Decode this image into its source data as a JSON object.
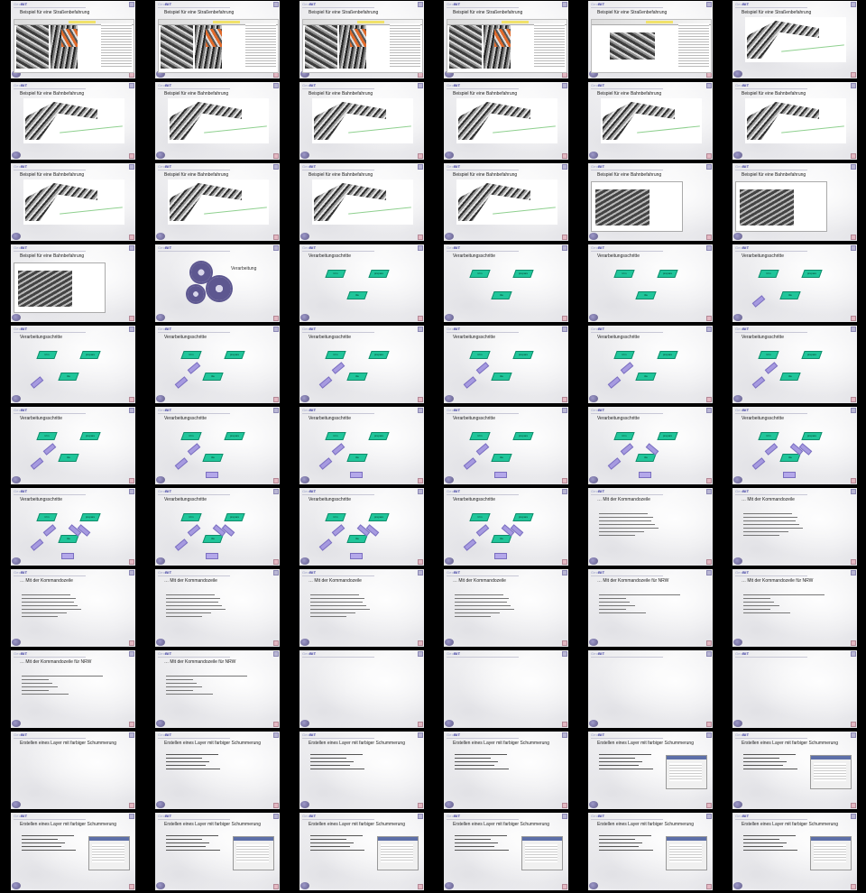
{
  "sheet": {
    "logo_text_light": "Geo",
    "logo_text_bold": "BIT"
  },
  "slides": [
    {
      "title": "Beispiel für eine Straßenbefahrung",
      "kind": "street"
    },
    {
      "title": "Beispiel für eine Straßenbefahrung",
      "kind": "street"
    },
    {
      "title": "Beispiel für eine Straßenbefahrung",
      "kind": "street"
    },
    {
      "title": "Beispiel für eine Straßenbefahrung",
      "kind": "street"
    },
    {
      "title": "Beispiel für eine Straßenbefahrung",
      "kind": "street-viewer"
    },
    {
      "title": "Beispiel für eine Straßenbefahrung",
      "kind": "cloud"
    },
    {
      "title": "Beispiel für eine Bahnbefahrung",
      "kind": "cloud"
    },
    {
      "title": "Beispiel für eine Bahnbefahrung",
      "kind": "cloud"
    },
    {
      "title": "Beispiel für eine Bahnbefahrung",
      "kind": "cloud"
    },
    {
      "title": "Beispiel für eine Bahnbefahrung",
      "kind": "cloud"
    },
    {
      "title": "Beispiel für eine Bahnbefahrung",
      "kind": "cloud"
    },
    {
      "title": "Beispiel für eine Bahnbefahrung",
      "kind": "cloud"
    },
    {
      "title": "Beispiel für eine Bahnbefahrung",
      "kind": "cloud"
    },
    {
      "title": "Beispiel für eine Bahnbefahrung",
      "kind": "cloud"
    },
    {
      "title": "Beispiel für eine Bahnbefahrung",
      "kind": "cloud"
    },
    {
      "title": "Beispiel für eine Bahnbefahrung",
      "kind": "cloud"
    },
    {
      "title": "Beispiel für eine Bahnbefahrung",
      "kind": "wide"
    },
    {
      "title": "Beispiel für eine Bahnbefahrung",
      "kind": "wide"
    },
    {
      "title": "Beispiel für eine Bahnbefahrung",
      "kind": "wide"
    },
    {
      "title": "Verarbeitung",
      "kind": "gears"
    },
    {
      "title": "Verarbeitungsschritte",
      "kind": "flow0"
    },
    {
      "title": "Verarbeitungsschritte",
      "kind": "flow0"
    },
    {
      "title": "Verarbeitungsschritte",
      "kind": "flow0"
    },
    {
      "title": "Verarbeitungsschritte",
      "kind": "flow1"
    },
    {
      "title": "Verarbeitungsschritte",
      "kind": "flow1"
    },
    {
      "title": "Verarbeitungsschritte",
      "kind": "flow2"
    },
    {
      "title": "Verarbeitungsschritte",
      "kind": "flow2"
    },
    {
      "title": "Verarbeitungsschritte",
      "kind": "flow2"
    },
    {
      "title": "Verarbeitungsschritte",
      "kind": "flow2"
    },
    {
      "title": "Verarbeitungsschritte",
      "kind": "flow2"
    },
    {
      "title": "Verarbeitungsschritte",
      "kind": "flow2"
    },
    {
      "title": "Verarbeitungsschritte",
      "kind": "flow3"
    },
    {
      "title": "Verarbeitungsschritte",
      "kind": "flow3"
    },
    {
      "title": "Verarbeitungsschritte",
      "kind": "flow3"
    },
    {
      "title": "Verarbeitungsschritte",
      "kind": "flow4"
    },
    {
      "title": "Verarbeitungsschritte",
      "kind": "flow5"
    },
    {
      "title": "Verarbeitungsschritte",
      "kind": "flow6"
    },
    {
      "title": "Verarbeitungsschritte",
      "kind": "flow6"
    },
    {
      "title": "Verarbeitungsschritte",
      "kind": "flow6"
    },
    {
      "title": "Verarbeitungsschritte",
      "kind": "flow6"
    },
    {
      "title": "… Mit der Kommandozeile",
      "kind": "cmd"
    },
    {
      "title": "… Mit der Kommandozeile",
      "kind": "cmd"
    },
    {
      "title": "… Mit der Kommandozeile",
      "kind": "cmd"
    },
    {
      "title": "… Mit der Kommandozeile",
      "kind": "cmd"
    },
    {
      "title": "… Mit der Kommandozeile",
      "kind": "cmd"
    },
    {
      "title": "… Mit der Kommandozeile",
      "kind": "cmd"
    },
    {
      "title": "… Mit der Kommandozeile für NRW",
      "kind": "cmd2"
    },
    {
      "title": "… Mit der Kommandozeile für NRW",
      "kind": "cmd2"
    },
    {
      "title": "… Mit der Kommandozeile für NRW",
      "kind": "cmd2"
    },
    {
      "title": "… Mit der Kommandozeile für NRW",
      "kind": "cmd2"
    },
    {
      "title": "",
      "kind": "blank"
    },
    {
      "title": "",
      "kind": "blank"
    },
    {
      "title": "",
      "kind": "blank"
    },
    {
      "title": "",
      "kind": "blank"
    },
    {
      "title": "Erstellen eines Layer mit farbiger Schummerung",
      "kind": "empty"
    },
    {
      "title": "Erstellen eines Layer mit farbiger Schummerung",
      "kind": "bullets"
    },
    {
      "title": "Erstellen eines Layer mit farbiger Schummerung",
      "kind": "bullets"
    },
    {
      "title": "Erstellen eines Layer mit farbiger Schummerung",
      "kind": "bullets"
    },
    {
      "title": "Erstellen eines Layer mit farbiger Schummerung",
      "kind": "bullets-dialog"
    },
    {
      "title": "Erstellen eines Layer mit farbiger Schummerung",
      "kind": "bullets-dialog"
    },
    {
      "title": "Erstellen eines Layer mit farbiger Schummerung",
      "kind": "bullets-dialog"
    },
    {
      "title": "Erstellen eines Layer mit farbiger Schummerung",
      "kind": "bullets-dialog"
    },
    {
      "title": "Erstellen eines Layer mit farbiger Schummerung",
      "kind": "bullets-dialog"
    },
    {
      "title": "Erstellen eines Layer mit farbiger Schummerung",
      "kind": "bullets-dialog"
    },
    {
      "title": "Erstellen eines Layer mit farbiger Schummerung",
      "kind": "bullets-dialog"
    },
    {
      "title": "Erstellen eines Layer mit farbiger Schummerung",
      "kind": "bullets-dialog"
    }
  ],
  "flow_labels": {
    "a": "trim",
    "b": "prepare",
    "c": "tile"
  }
}
